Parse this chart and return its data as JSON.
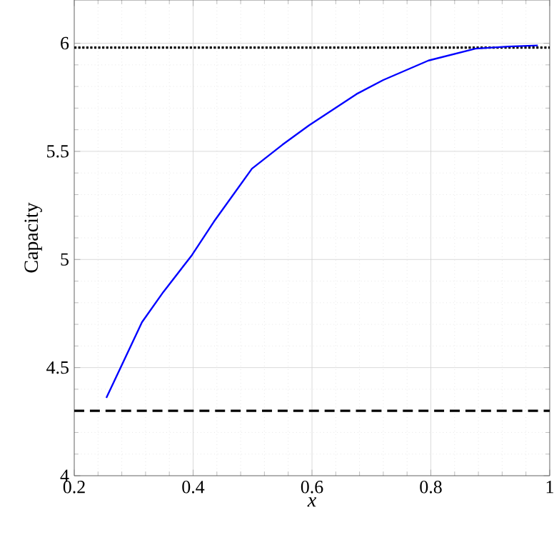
{
  "chart_data": {
    "type": "line",
    "xlabel": "x",
    "ylabel": "Capacity",
    "x": [
      0.254,
      0.314,
      0.35,
      0.398,
      0.435,
      0.499,
      0.55,
      0.595,
      0.675,
      0.72,
      0.796,
      0.875,
      0.93,
      0.98
    ],
    "series": [
      {
        "color": "#0000ff",
        "values": [
          4.36,
          4.71,
          4.85,
          5.02,
          5.175,
          5.42,
          5.53,
          5.62,
          5.765,
          5.83,
          5.92,
          5.975,
          5.985,
          5.99
        ]
      }
    ],
    "xlim": [
      0.2,
      1
    ],
    "ylim": [
      4,
      6.2
    ],
    "xticks": [
      0.2,
      0.4,
      0.6,
      0.8,
      1
    ],
    "yticks": [
      4,
      4.5,
      5,
      5.5,
      6
    ],
    "grid": true,
    "line_style": "solid",
    "ref_lines": [
      {
        "axis": "y",
        "value": 5.98,
        "color": "#000000",
        "line_style": "dotted"
      },
      {
        "axis": "y",
        "value": 4.3,
        "color": "#000000",
        "line_style": "dashed"
      }
    ]
  }
}
